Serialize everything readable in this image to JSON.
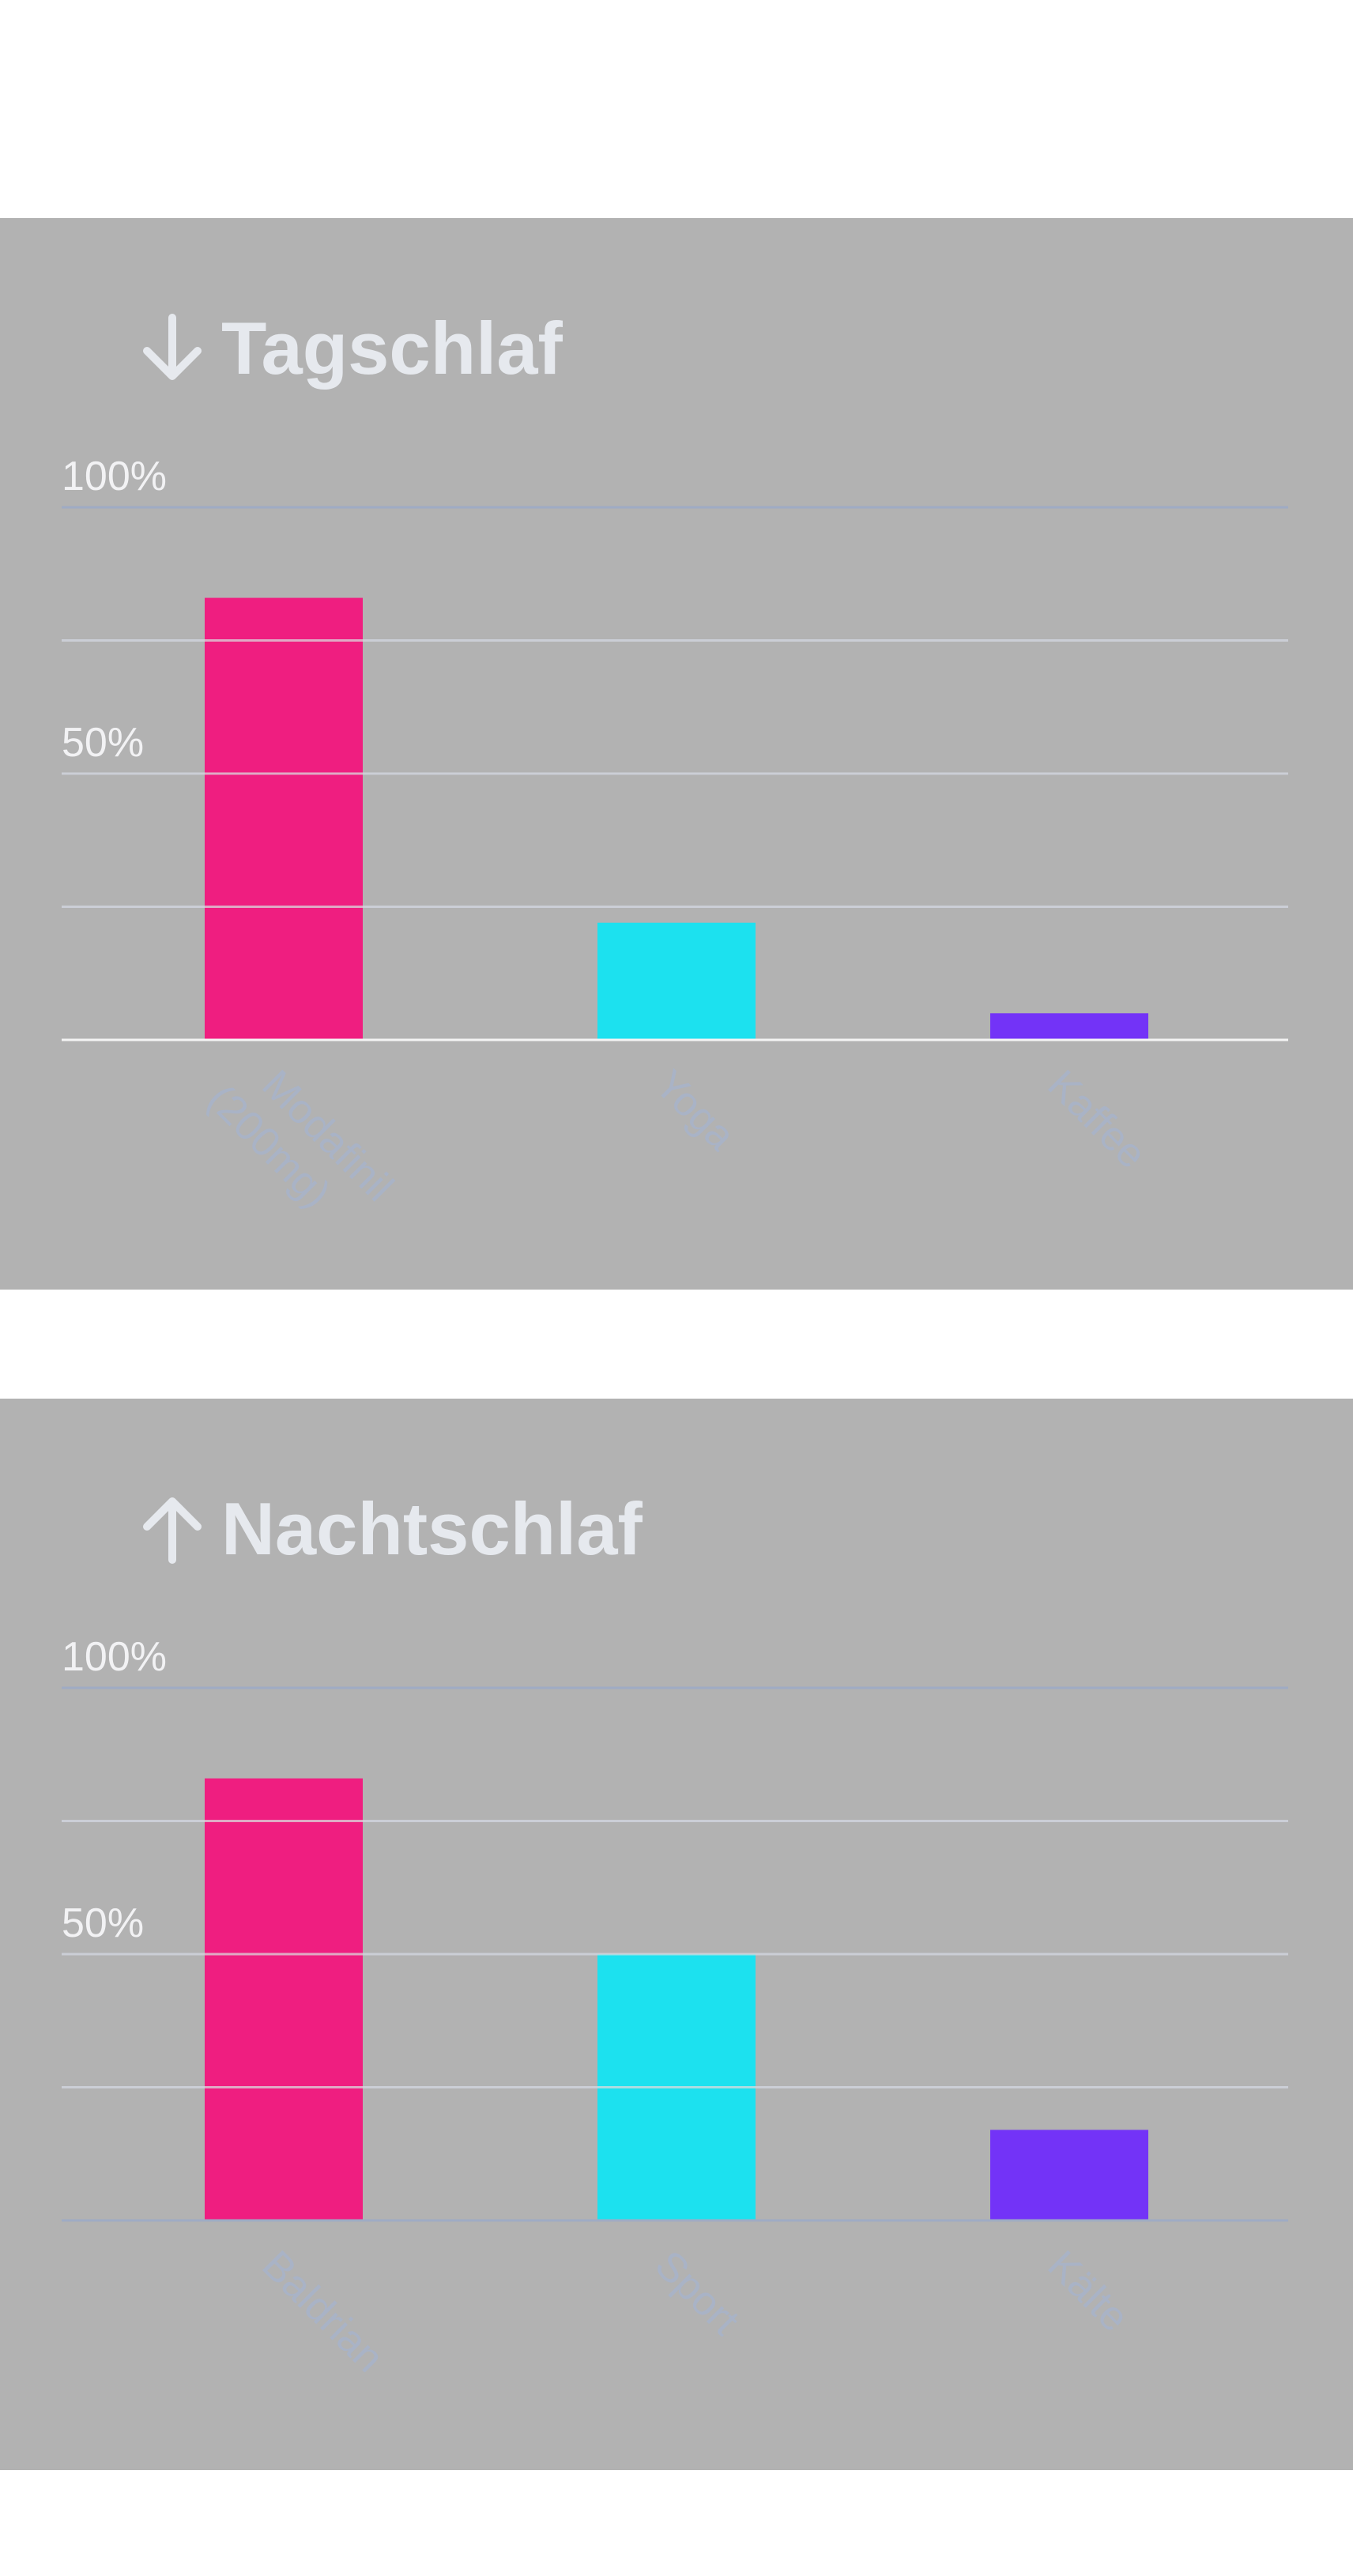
{
  "colors": {
    "background": "#ffffff",
    "panel": "#b2b2b2",
    "title": "#e6e9ee",
    "grid": "#9fabc4",
    "baseline": "#f4f4f4",
    "tick_label": "#f2f2f4",
    "category_label": "#a9b3c6",
    "bars": [
      "#ef1e80",
      "#1ce1ef",
      "#7333f7"
    ]
  },
  "charts": [
    {
      "title": "Tagschlaf",
      "title_icon": "arrow-down-icon"
    },
    {
      "title": "Nachtschlaf",
      "title_icon": "arrow-up-icon"
    }
  ],
  "chart_data": [
    {
      "type": "bar",
      "title": "Tagschlaf",
      "categories": [
        "Modafinil (200mg)",
        "Yoga",
        "Kaffee"
      ],
      "values": [
        83,
        22,
        5
      ],
      "ylim": [
        0,
        100
      ],
      "yticks": [
        {
          "value": 100,
          "label": "100%"
        },
        {
          "value": 50,
          "label": "50%"
        }
      ],
      "grid_values": [
        25,
        50,
        75,
        100
      ],
      "grid": true,
      "xlabel": "",
      "ylabel": ""
    },
    {
      "type": "bar",
      "title": "Nachtschlaf",
      "categories": [
        "Baldrian",
        "Sport",
        "Kälte"
      ],
      "values": [
        83,
        50,
        17
      ],
      "ylim": [
        0,
        100
      ],
      "yticks": [
        {
          "value": 100,
          "label": "100%"
        },
        {
          "value": 50,
          "label": "50%"
        }
      ],
      "grid_values": [
        25,
        50,
        75,
        100
      ],
      "grid": true,
      "xlabel": "",
      "ylabel": ""
    }
  ]
}
